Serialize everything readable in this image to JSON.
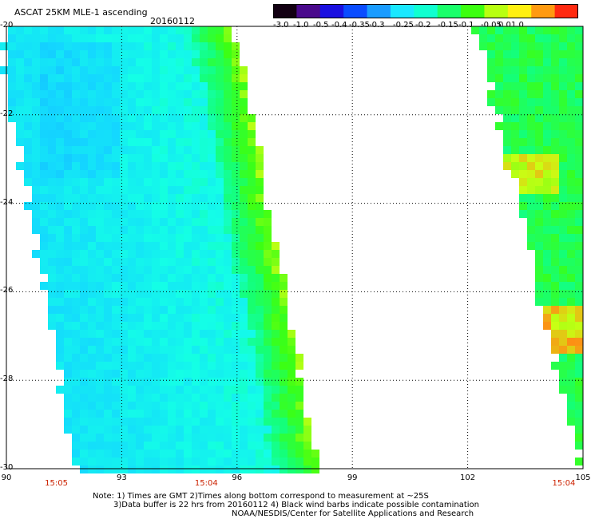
{
  "title": "ASCAT 25KM MLE-1 ascending",
  "date": "20160112",
  "colorbar": {
    "labels": [
      "-3.0",
      "-1.0",
      "-0.5",
      "-0.4",
      "-0.35",
      "-0.3",
      "-0.25",
      "-0.2",
      "-0.15",
      "-0.1",
      "-0.05",
      "0.0",
      "1.0"
    ],
    "colors": [
      "#120012",
      "#4a0a8c",
      "#1a10e0",
      "#0a4cff",
      "#1a9cff",
      "#1ae8ff",
      "#10ffd0",
      "#1aff6a",
      "#3cff10",
      "#b8ff10",
      "#fff010",
      "#ff9a10",
      "#ff2a10"
    ]
  },
  "lon_ticks": [
    {
      "label": "90",
      "value": 90
    },
    {
      "label": "93",
      "value": 93
    },
    {
      "label": "96",
      "value": 96
    },
    {
      "label": "99",
      "value": 99
    },
    {
      "label": "102",
      "value": 102
    },
    {
      "label": "105",
      "value": 105
    }
  ],
  "lat_ticks": [
    {
      "label": "-20",
      "value": -20
    },
    {
      "label": "-22",
      "value": -22
    },
    {
      "label": "-24",
      "value": -24
    },
    {
      "label": "-26",
      "value": -26
    },
    {
      "label": "-28",
      "value": -28
    },
    {
      "label": "-30",
      "value": -30
    }
  ],
  "times": [
    {
      "label": "15:05",
      "lon": 91.3
    },
    {
      "label": "15:04",
      "lon": 95.2
    },
    {
      "label": "15:04",
      "lon": 104.5
    }
  ],
  "notes": [
    "Note: 1) Times are GMT 2)Times along bottom correspond to measurement at ~25S",
    "3)Data buffer is 22 hrs from 20160112 4) Black wind barbs indicate possible contamination",
    "NOAA/NESDIS/Center for Satellite Applications and Research"
  ]
}
